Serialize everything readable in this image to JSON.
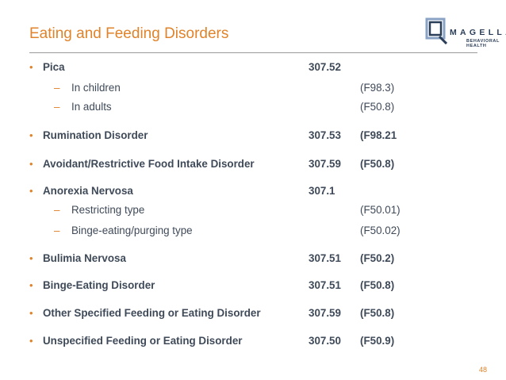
{
  "slide": {
    "title": "Eating and Feeding Disorders",
    "page_number": "48"
  },
  "logo": {
    "word": "MAGELLAN",
    "subtitle": "BEHAVIORAL HEALTH"
  },
  "items": [
    {
      "type": "main",
      "name": "Pica",
      "icd9": "307.52",
      "icd10": ""
    },
    {
      "type": "sub",
      "name": "In children",
      "icd9": "",
      "icd10": "(F98.3)"
    },
    {
      "type": "sub",
      "name": "In adults",
      "icd9": "",
      "icd10": "(F50.8)"
    },
    {
      "type": "main",
      "name": "Rumination Disorder",
      "icd9": "307.53",
      "icd10": "(F98.21"
    },
    {
      "type": "main",
      "name": "Avoidant/Restrictive Food Intake Disorder",
      "icd9": "307.59",
      "icd10": "(F50.8)"
    },
    {
      "type": "main",
      "name": "Anorexia Nervosa",
      "icd9": "307.1",
      "icd10": ""
    },
    {
      "type": "sub",
      "name": "Restricting type",
      "icd9": "",
      "icd10": "(F50.01)"
    },
    {
      "type": "sub",
      "name": "Binge-eating/purging type",
      "icd9": "",
      "icd10": "(F50.02)"
    },
    {
      "type": "main",
      "name": "Bulimia Nervosa",
      "icd9": "307.51",
      "icd10": "(F50.2)"
    },
    {
      "type": "main",
      "name": "Binge-Eating Disorder",
      "icd9": "307.51",
      "icd10": "(F50.8)"
    },
    {
      "type": "main",
      "name": "Other Specified Feeding or Eating Disorder",
      "icd9": "307.59",
      "icd10": "(F50.8)"
    },
    {
      "type": "main",
      "name": "Unspecified Feeding or Eating Disorder",
      "icd9": "307.50",
      "icd10": "(F50.9)"
    }
  ]
}
